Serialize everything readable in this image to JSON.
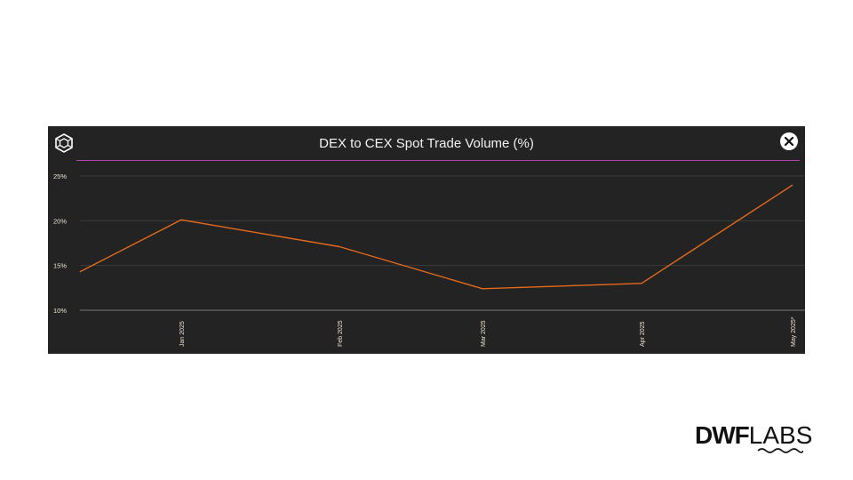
{
  "chart_data": {
    "type": "line",
    "title": "DEX to CEX Spot Trade Volume (%)",
    "categories": [
      "",
      "Jan 2025",
      "Feb 2025",
      "Mar 2025",
      "Apr 2025",
      "May 2025*"
    ],
    "series": [
      {
        "name": "DEX to CEX Spot Trade Volume",
        "values": [
          14.3,
          20.1,
          17.1,
          12.4,
          13.0,
          24.0
        ],
        "color": "#e46a1c"
      }
    ],
    "y_ticks": [
      "10%",
      "15%",
      "20%",
      "25%"
    ],
    "y_tick_values": [
      10,
      15,
      20,
      25
    ],
    "ylim": [
      10,
      25
    ],
    "xlabel": "",
    "ylabel": "",
    "grid": true
  },
  "brand": {
    "bold": "DWF",
    "light": "LABS"
  },
  "colors": {
    "panel_bg": "#232323",
    "line": "#e46a1c",
    "divider": "#b43fb0",
    "grid": "#3c3c3c",
    "tick_text": "#ede2cf"
  }
}
